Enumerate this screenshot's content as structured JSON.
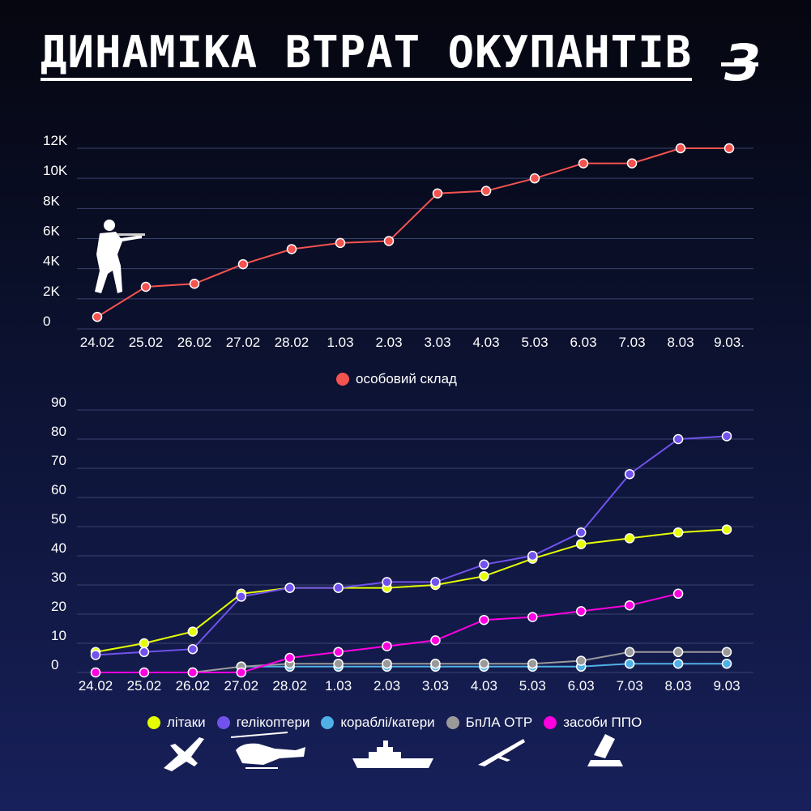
{
  "title": "ДИНАМІКА ВТРАТ ОКУПАНТІВ",
  "logo_text": "З",
  "colors": {
    "background_top": "#05060f",
    "background_bottom": "#17205a",
    "personnel": "#f4534f",
    "planes": "#e6ff00",
    "helicopters": "#7152ec",
    "ships": "#4fb0e6",
    "uav": "#9a9a9a",
    "air_defense": "#ff00e0"
  },
  "chart_data": [
    {
      "type": "line",
      "categories": [
        "24.02",
        "25.02",
        "26.02",
        "27.02",
        "28.02",
        "1.03",
        "2.03",
        "3.03",
        "4.03",
        "5.03",
        "6.03",
        "7.03",
        "8.03",
        "9.03."
      ],
      "y_tick_labels": [
        "0",
        "2K",
        "4K",
        "6K",
        "8K",
        "10K",
        "12K"
      ],
      "y_ticks": [
        0,
        2000,
        4000,
        6000,
        8000,
        10000,
        12000
      ],
      "ylim": [
        0,
        12000
      ],
      "grid": true,
      "legend_position": "bottom-center",
      "series": [
        {
          "name": "особовий склад",
          "color": "#f4534f",
          "values": [
            800,
            2800,
            3000,
            4300,
            5300,
            5710,
            5840,
            9000,
            9166,
            10000,
            11000,
            11000,
            12000,
            12000
          ]
        }
      ]
    },
    {
      "type": "line",
      "categories": [
        "24.02",
        "25.02",
        "26.02",
        "27.02",
        "28.02",
        "1.03",
        "2.03",
        "3.03",
        "4.03",
        "5.03",
        "6.03",
        "7.03",
        "8.03",
        "9.03"
      ],
      "y_tick_labels": [
        "0",
        "10",
        "20",
        "30",
        "40",
        "50",
        "60",
        "70",
        "80",
        "90"
      ],
      "y_ticks": [
        0,
        10,
        20,
        30,
        40,
        50,
        60,
        70,
        80,
        90
      ],
      "ylim": [
        0,
        90
      ],
      "grid": true,
      "legend_position": "bottom-center",
      "series": [
        {
          "name": "літаки",
          "color": "#e6ff00",
          "values": [
            7,
            10,
            14,
            27,
            29,
            29,
            29,
            30,
            33,
            39,
            44,
            46,
            48,
            49
          ]
        },
        {
          "name": "гелікоптери",
          "color": "#7152ec",
          "values": [
            6,
            7,
            8,
            26,
            29,
            29,
            31,
            31,
            37,
            40,
            48,
            68,
            80,
            81
          ]
        },
        {
          "name": "кораблі/катери",
          "color": "#4fb0e6",
          "values": [
            null,
            null,
            null,
            2,
            2,
            2,
            2,
            2,
            2,
            2,
            2,
            3,
            3,
            3
          ]
        },
        {
          "name": "БпЛА ОТР",
          "color": "#9a9a9a",
          "values": [
            null,
            null,
            0,
            2,
            3,
            3,
            3,
            3,
            3,
            3,
            4,
            7,
            7,
            7
          ]
        },
        {
          "name": "засоби ППО",
          "color": "#ff00e0",
          "values": [
            0,
            0,
            0,
            0,
            5,
            7,
            9,
            11,
            18,
            19,
            21,
            23,
            27,
            null
          ]
        }
      ]
    }
  ],
  "icons": [
    "soldier-icon",
    "plane-icon",
    "helicopter-icon",
    "ship-icon",
    "uav-icon",
    "air-defense-icon"
  ]
}
